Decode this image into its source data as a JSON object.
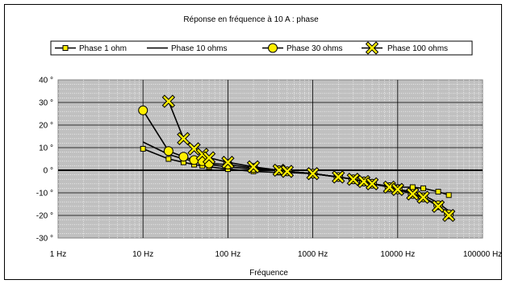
{
  "chart_data": {
    "type": "line",
    "title": "Réponse en fréquence à 10 A : phase",
    "xlabel": "Fréquence",
    "ylabel": "",
    "xscale": "log",
    "xlim": [
      1,
      100000
    ],
    "ylim": [
      -30,
      40
    ],
    "x_tick_labels": [
      "1 Hz",
      "10 Hz",
      "100 Hz",
      "1000 Hz",
      "10000 Hz",
      "100000 Hz"
    ],
    "y_tick_labels": [
      "40 °",
      "30 °",
      "20 °",
      "10 °",
      "0 °",
      "-10 °",
      "-20 °",
      "-30 °"
    ],
    "grid": true,
    "legend_position": "top",
    "colors": {
      "marker_fill": "#ffef00",
      "line": "#000000",
      "plot_bg": "#c0c0c0"
    },
    "series": [
      {
        "name": "Phase 1 ohm",
        "marker": "square",
        "x": [
          10,
          20,
          30,
          40,
          50,
          60,
          100,
          200,
          400,
          500,
          1000,
          2000,
          3000,
          4000,
          5000,
          8000,
          10000,
          15000,
          20000,
          30000,
          40000
        ],
        "y": [
          9.5,
          5,
          3.5,
          2.5,
          2,
          1.5,
          0.5,
          -0.5,
          -1,
          -1,
          -1.5,
          -3,
          -4,
          -5,
          -6,
          -7,
          -7.5,
          -7.5,
          -8,
          -9.5,
          -11
        ]
      },
      {
        "name": "Phase 10 ohms",
        "marker": "none",
        "x": [
          10,
          20,
          30,
          40,
          50,
          60,
          100,
          200,
          400,
          500,
          1000,
          2000,
          3000,
          4000,
          5000,
          8000,
          10000,
          15000,
          20000,
          30000,
          40000
        ],
        "y": [
          12.5,
          7,
          5,
          4,
          3.5,
          2.5,
          1.5,
          0.5,
          0,
          -0.5,
          -1.5,
          -3,
          -4,
          -5,
          -6,
          -7.5,
          -8.5,
          -9.5,
          -11,
          -14.5,
          -18
        ]
      },
      {
        "name": "Phase 30 ohms",
        "marker": "circle",
        "x": [
          10,
          20,
          30,
          40,
          50,
          60,
          100,
          200,
          400,
          500,
          1000,
          2000,
          3000,
          4000,
          5000,
          8000,
          10000,
          15000,
          20000,
          30000,
          40000
        ],
        "y": [
          26.5,
          8.5,
          6,
          4.5,
          4,
          3,
          2.5,
          1,
          0,
          -0.5,
          -1.5,
          -3,
          -4,
          -5,
          -6,
          -7.5,
          -8.5,
          -10.5,
          -12,
          -15.5,
          -19.5
        ]
      },
      {
        "name": "Phase 100 ohms",
        "marker": "x",
        "x": [
          20,
          30,
          40,
          50,
          60,
          100,
          200,
          400,
          500,
          1000,
          2000,
          3000,
          4000,
          5000,
          8000,
          10000,
          15000,
          20000,
          30000,
          40000
        ],
        "y": [
          30.5,
          14,
          9.5,
          7,
          5.5,
          3.5,
          1.5,
          0,
          -0.5,
          -1.5,
          -3,
          -4,
          -5,
          -6,
          -7.5,
          -8.5,
          -10.5,
          -12,
          -16,
          -20
        ]
      }
    ]
  }
}
